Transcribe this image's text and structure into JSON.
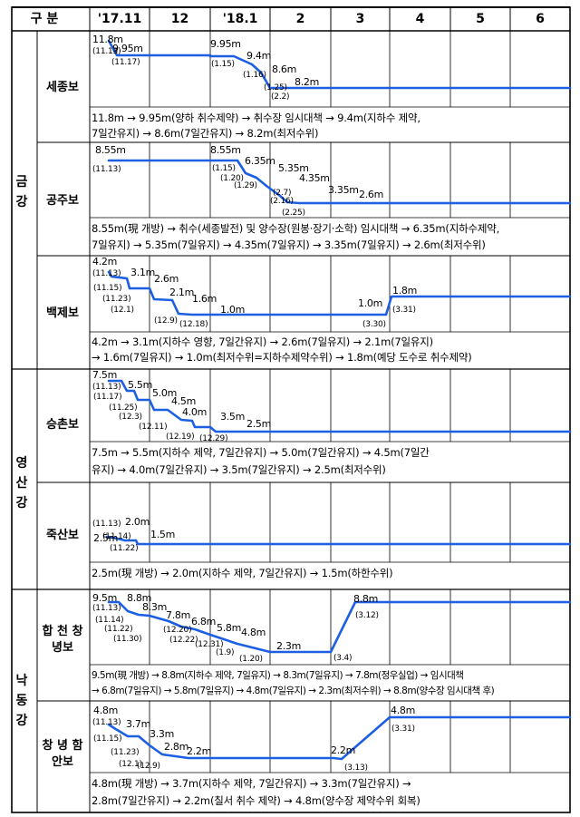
{
  "header": {
    "label": "구 분",
    "months": [
      "'17.11",
      "12",
      "'18.1",
      "2",
      "3",
      "4",
      "5",
      "6"
    ]
  },
  "rivers": [
    {
      "name": "금강"
    },
    {
      "name": "영산강"
    },
    {
      "name": "낙동강"
    }
  ],
  "weirs": [
    {
      "name": "세종보",
      "levels": [
        11.8,
        9.95,
        9.95,
        9.4,
        8.6,
        8.2
      ],
      "labels": [
        {
          "t": "11.8m",
          "big": true
        },
        {
          "t": "(11.13)"
        },
        {
          "t": "9.95m",
          "big": true
        },
        {
          "t": "(11.17)"
        },
        {
          "t": "9.95m",
          "big": true
        },
        {
          "t": "(1.15)"
        },
        {
          "t": "9.4m",
          "big": true
        },
        {
          "t": "(1.16)"
        },
        {
          "t": "8.6m",
          "big": true
        },
        {
          "t": "(1.25)"
        },
        {
          "t": "8.2m",
          "big": true
        },
        {
          "t": "(2.2)"
        }
      ],
      "desc": [
        "11.8m → 9.95m(양하 취수제약) → 취수장 임시대책 → 9.4m(지하수 제약,",
        "7일간유지) → 8.6m(7일간유지) → 8.2m(최저수위)"
      ]
    },
    {
      "name": "공주보",
      "levels": [
        8.55,
        8.55,
        6.35,
        5.35,
        4.35,
        3.35,
        2.6
      ],
      "labels": [
        {
          "t": "8.55m",
          "big": true
        },
        {
          "t": "(11.13)"
        },
        {
          "t": "8.55m",
          "big": true
        },
        {
          "t": "(1.15)"
        },
        {
          "t": "(1.20)"
        },
        {
          "t": "6.35m",
          "big": true
        },
        {
          "t": "(1.29)"
        },
        {
          "t": "5.35m",
          "big": true
        },
        {
          "t": "(2.7)"
        },
        {
          "t": "4.35m",
          "big": true
        },
        {
          "t": "(2.16)"
        },
        {
          "t": "3.35m",
          "big": true
        },
        {
          "t": "(2.25)"
        },
        {
          "t": "2.6m",
          "big": true
        }
      ],
      "desc": [
        "8.55m(現 개방) → 취수(세종발전) 및 양수장(원봉·장기·소학) 임시대책 → 6.35m(지하수제약,",
        "7일유지) → 5.35m(7일유지) → 4.35m(7일유지) → 3.35m(7일유지) → 2.6m(최저수위)"
      ]
    },
    {
      "name": "백제보",
      "levels": [
        4.2,
        3.1,
        2.6,
        2.1,
        1.6,
        1.0,
        1.0,
        1.8
      ],
      "labels": [
        {
          "t": "4.2m",
          "big": true
        },
        {
          "t": "(11.13)"
        },
        {
          "t": "3.1m",
          "big": true
        },
        {
          "t": "(11.15)"
        },
        {
          "t": "2.6m",
          "big": true
        },
        {
          "t": "(11.23)"
        },
        {
          "t": "2.1m",
          "big": true
        },
        {
          "t": "(12.1)"
        },
        {
          "t": "1.6m",
          "big": true
        },
        {
          "t": "(12.9)"
        },
        {
          "t": "1.0m",
          "big": true
        },
        {
          "t": "(12.18)"
        },
        {
          "t": "1.0m",
          "big": true
        },
        {
          "t": "(3.30)"
        },
        {
          "t": "1.8m",
          "big": true
        },
        {
          "t": "(3.31)"
        }
      ],
      "desc": [
        "4.2m → 3.1m(지하수 영향, 7일간유지) → 2.6m(7일유지) → 2.1m(7일유지)",
        "→ 1.6m(7일유지) → 1.0m(최저수위=지하수제약수위) → 1.8m(예당 도수로 취수제약)"
      ]
    },
    {
      "name": "승촌보",
      "levels": [
        7.5,
        5.5,
        5.0,
        4.5,
        4.0,
        3.5,
        2.5
      ],
      "labels": [
        {
          "t": "7.5m",
          "big": true
        },
        {
          "t": "(11.13)"
        },
        {
          "t": "5.5m",
          "big": true
        },
        {
          "t": "(11.17)"
        },
        {
          "t": "5.0m",
          "big": true
        },
        {
          "t": "(11.25)"
        },
        {
          "t": "4.5m",
          "big": true
        },
        {
          "t": "(12.3)"
        },
        {
          "t": "4.0m",
          "big": true
        },
        {
          "t": "(12.11)"
        },
        {
          "t": "3.5m",
          "big": true
        },
        {
          "t": "(12.19)"
        },
        {
          "t": "2.5m",
          "big": true
        },
        {
          "t": "(12.29)"
        }
      ],
      "desc": [
        "7.5m → 5.5m(지하수 제약, 7일간유지) → 5.0m(7일간유지) → 4.5m(7일간",
        "유지) → 4.0m(7일간유지) → 3.5m(7일간유지) → 2.5m(최저수위)"
      ]
    },
    {
      "name": "죽산보",
      "levels": [
        2.5,
        2.0,
        1.5
      ],
      "labels": [
        {
          "t": "2.5m",
          "big": true
        },
        {
          "t": "(11.13)"
        },
        {
          "t": "2.0m",
          "big": true
        },
        {
          "t": "(11.14)"
        },
        {
          "t": "1.5m",
          "big": true
        },
        {
          "t": "(11.22)"
        }
      ],
      "desc": [
        "2.5m(現 개방) → 2.0m(지하수 제약, 7일간유지) → 1.5m(하한수위)"
      ]
    },
    {
      "name": "합 천 창녕보",
      "levels": [
        9.5,
        8.8,
        8.3,
        7.8,
        6.8,
        5.8,
        4.8,
        2.3,
        8.8
      ],
      "labels": [
        {
          "t": "9.5m",
          "big": true
        },
        {
          "t": "(11.13)"
        },
        {
          "t": "8.8m",
          "big": true
        },
        {
          "t": "(11.14)"
        },
        {
          "t": "8.3m",
          "big": true
        },
        {
          "t": "(11.22)"
        },
        {
          "t": "7.8m",
          "big": true
        },
        {
          "t": "(11.30)"
        },
        {
          "t": "6.8m",
          "big": true
        },
        {
          "t": "(12.20)"
        },
        {
          "t": "5.8m",
          "big": true
        },
        {
          "t": "(12.22)"
        },
        {
          "t": "4.8m",
          "big": true
        },
        {
          "t": "(12.31)"
        },
        {
          "t": "(1.9)"
        },
        {
          "t": "2.3m",
          "big": true
        },
        {
          "t": "(1.20)"
        },
        {
          "t": "(3.4)"
        },
        {
          "t": "8.8m",
          "big": true
        },
        {
          "t": "(3.12)"
        }
      ],
      "desc": [
        "9.5m(現 개방) → 8.8m(지하수 제약, 7일유지) → 8.3m(7일유지) → 7.8m(정우실업) → 임시대책",
        "→ 6.8m(7일유지) → 5.8m(7일유지) → 4.8m(7일유지) → 2.3m(최저수위) → 8.8m(양수장 임시대책 후)"
      ]
    },
    {
      "name": "창 녕 함안보",
      "levels": [
        4.8,
        3.7,
        3.3,
        2.8,
        2.2,
        2.2,
        4.8
      ],
      "labels": [
        {
          "t": "4.8m",
          "big": true
        },
        {
          "t": "(11.13)"
        },
        {
          "t": "3.7m",
          "big": true
        },
        {
          "t": "(11.15)"
        },
        {
          "t": "3.3m",
          "big": true
        },
        {
          "t": "(11.23)"
        },
        {
          "t": "2.8m",
          "big": true
        },
        {
          "t": "(12.1)"
        },
        {
          "t": "2.2m",
          "big": true
        },
        {
          "t": "(12.9)"
        },
        {
          "t": "2.2m",
          "big": true
        },
        {
          "t": "(3.13)"
        },
        {
          "t": "4.8m",
          "big": true
        },
        {
          "t": "(3.31)"
        }
      ],
      "desc": [
        "4.8m(現 개방) → 3.7m(지하수 제약, 7일간유지) → 3.3m(7일간유지) →",
        "2.8m(7일간유지) → 2.2m(칠서 취수 제약) → 4.8m(양수장 제약수위 회복)"
      ]
    }
  ]
}
